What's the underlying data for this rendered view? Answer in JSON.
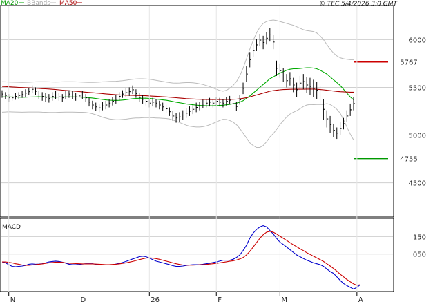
{
  "chart_data": [
    {
      "type": "line",
      "title": "© TEC 5/4/2026 3:0 GMT",
      "legend": [
        {
          "name": "MA20",
          "color": "#00aa00"
        },
        {
          "name": "BBands",
          "color": "#bbbbbb"
        },
        {
          "name": "MA50",
          "color": "#aa0000"
        }
      ],
      "y_ticks": [
        "6000",
        "5500",
        "5000",
        "4500"
      ],
      "y_tick_values": [
        6000,
        5500,
        5000,
        4500
      ],
      "ylim": [
        4150,
        6350
      ],
      "x_ticks": [
        {
          "label": "N",
          "index": 2
        },
        {
          "label": "D",
          "index": 23
        },
        {
          "label": "26",
          "index": 44
        },
        {
          "label": "F",
          "index": 64
        },
        {
          "label": "M",
          "index": 83
        },
        {
          "label": "A",
          "index": 106
        }
      ],
      "n_bars": 106,
      "levels": [
        {
          "label": "5767",
          "value": 5767,
          "color": "#cc0000"
        },
        {
          "label": "4755",
          "value": 4755,
          "color": "#009900"
        }
      ],
      "price_bars": [
        [
          5470,
          5390
        ],
        [
          5450,
          5380
        ],
        [
          5430,
          5350
        ],
        [
          5420,
          5360
        ],
        [
          5440,
          5370
        ],
        [
          5450,
          5380
        ],
        [
          5460,
          5390
        ],
        [
          5480,
          5400
        ],
        [
          5490,
          5420
        ],
        [
          5520,
          5440
        ],
        [
          5500,
          5420
        ],
        [
          5460,
          5380
        ],
        [
          5450,
          5360
        ],
        [
          5440,
          5350
        ],
        [
          5430,
          5340
        ],
        [
          5450,
          5360
        ],
        [
          5460,
          5380
        ],
        [
          5440,
          5360
        ],
        [
          5430,
          5350
        ],
        [
          5460,
          5380
        ],
        [
          5470,
          5390
        ],
        [
          5460,
          5380
        ],
        [
          5440,
          5360
        ],
        [
          5450,
          5370
        ],
        [
          5460,
          5380
        ],
        [
          5430,
          5350
        ],
        [
          5390,
          5300
        ],
        [
          5360,
          5270
        ],
        [
          5340,
          5250
        ],
        [
          5330,
          5240
        ],
        [
          5350,
          5260
        ],
        [
          5360,
          5270
        ],
        [
          5380,
          5290
        ],
        [
          5400,
          5310
        ],
        [
          5420,
          5330
        ],
        [
          5450,
          5360
        ],
        [
          5470,
          5390
        ],
        [
          5490,
          5400
        ],
        [
          5500,
          5410
        ],
        [
          5520,
          5430
        ],
        [
          5480,
          5390
        ],
        [
          5440,
          5350
        ],
        [
          5420,
          5330
        ],
        [
          5400,
          5310
        ],
        [
          5380,
          5290
        ],
        [
          5390,
          5300
        ],
        [
          5380,
          5290
        ],
        [
          5360,
          5270
        ],
        [
          5340,
          5250
        ],
        [
          5320,
          5230
        ],
        [
          5290,
          5200
        ],
        [
          5250,
          5150
        ],
        [
          5230,
          5130
        ],
        [
          5240,
          5140
        ],
        [
          5260,
          5160
        ],
        [
          5280,
          5180
        ],
        [
          5300,
          5200
        ],
        [
          5320,
          5220
        ],
        [
          5340,
          5240
        ],
        [
          5350,
          5260
        ],
        [
          5370,
          5280
        ],
        [
          5380,
          5290
        ],
        [
          5390,
          5300
        ],
        [
          5380,
          5290
        ],
        [
          5400,
          5310
        ],
        [
          5390,
          5300
        ],
        [
          5380,
          5290
        ],
        [
          5400,
          5310
        ],
        [
          5410,
          5320
        ],
        [
          5380,
          5280
        ],
        [
          5350,
          5250
        ],
        [
          5420,
          5320
        ],
        [
          5550,
          5430
        ],
        [
          5720,
          5560
        ],
        [
          5870,
          5710
        ],
        [
          5950,
          5820
        ],
        [
          6010,
          5880
        ],
        [
          6060,
          5930
        ],
        [
          6040,
          5900
        ],
        [
          6080,
          5950
        ],
        [
          6120,
          5980
        ],
        [
          6050,
          5900
        ],
        [
          5780,
          5620
        ],
        [
          5750,
          5600
        ],
        [
          5700,
          5560
        ],
        [
          5640,
          5500
        ],
        [
          5660,
          5520
        ],
        [
          5600,
          5450
        ],
        [
          5550,
          5400
        ],
        [
          5620,
          5470
        ],
        [
          5640,
          5480
        ],
        [
          5610,
          5440
        ],
        [
          5600,
          5420
        ],
        [
          5580,
          5400
        ],
        [
          5560,
          5380
        ],
        [
          5520,
          5320
        ],
        [
          5380,
          5160
        ],
        [
          5260,
          5080
        ],
        [
          5200,
          5020
        ],
        [
          5120,
          4980
        ],
        [
          5080,
          4960
        ],
        [
          5140,
          5000
        ],
        [
          5180,
          5060
        ],
        [
          5260,
          5140
        ],
        [
          5330,
          5200
        ],
        [
          5400,
          5260
        ]
      ],
      "series": [
        {
          "name": "MA20",
          "color": "#00aa00",
          "values": [
            5400,
            5400,
            5400,
            5399,
            5398,
            5397,
            5396,
            5397,
            5398,
            5399,
            5400,
            5401,
            5400,
            5399,
            5398,
            5397,
            5397,
            5398,
            5399,
            5400,
            5400,
            5400,
            5399,
            5398,
            5397,
            5395,
            5392,
            5388,
            5383,
            5378,
            5373,
            5369,
            5366,
            5364,
            5363,
            5364,
            5367,
            5371,
            5376,
            5381,
            5384,
            5385,
            5386,
            5386,
            5384,
            5381,
            5377,
            5373,
            5369,
            5365,
            5359,
            5352,
            5345,
            5339,
            5333,
            5327,
            5322,
            5318,
            5314,
            5311,
            5309,
            5308,
            5308,
            5308,
            5309,
            5311,
            5313,
            5317,
            5322,
            5328,
            5335,
            5345,
            5360,
            5385,
            5410,
            5440,
            5470,
            5500,
            5530,
            5560,
            5590,
            5610,
            5630,
            5650,
            5665,
            5680,
            5690,
            5695,
            5695,
            5698,
            5702,
            5705,
            5705,
            5702,
            5695,
            5680,
            5660,
            5640,
            5610,
            5580,
            5550,
            5520,
            5480,
            5440,
            5400,
            5370
          ]
        },
        {
          "name": "MA50",
          "color": "#aa0000",
          "values": [
            5510,
            5508,
            5506,
            5504,
            5502,
            5500,
            5498,
            5497,
            5495,
            5493,
            5491,
            5489,
            5487,
            5485,
            5483,
            5480,
            5477,
            5474,
            5471,
            5468,
            5465,
            5462,
            5459,
            5456,
            5453,
            5450,
            5447,
            5444,
            5441,
            5438,
            5435,
            5432,
            5429,
            5426,
            5423,
            5421,
            5419,
            5418,
            5417,
            5416,
            5415,
            5414,
            5413,
            5412,
            5410,
            5408,
            5406,
            5404,
            5402,
            5400,
            5397,
            5394,
            5391,
            5388,
            5385,
            5382,
            5380,
            5378,
            5376,
            5375,
            5374,
            5373,
            5372,
            5372,
            5372,
            5372,
            5372,
            5373,
            5374,
            5375,
            5377,
            5380,
            5385,
            5392,
            5400,
            5410,
            5420,
            5430,
            5440,
            5450,
            5460,
            5466,
            5470,
            5474,
            5477,
            5479,
            5480,
            5481,
            5481,
            5481,
            5481,
            5482,
            5482,
            5482,
            5480,
            5477,
            5474,
            5470,
            5466,
            5462,
            5458,
            5455,
            5453,
            5451,
            5450,
            5450
          ]
        },
        {
          "name": "BBands",
          "color": "#bbbbbb",
          "values": [
            5560,
            5558,
            5556,
            5555,
            5554,
            5553,
            5552,
            5553,
            5554,
            5556,
            5558,
            5560,
            5560,
            5559,
            5558,
            5557,
            5556,
            5557,
            5558,
            5559,
            5559,
            5559,
            5558,
            5557,
            5555,
            5553,
            5552,
            5552,
            5553,
            5555,
            5558,
            5560,
            5562,
            5563,
            5564,
            5566,
            5570,
            5575,
            5580,
            5585,
            5588,
            5590,
            5590,
            5588,
            5585,
            5580,
            5574,
            5568,
            5562,
            5556,
            5550,
            5546,
            5545,
            5546,
            5548,
            5550,
            5550,
            5548,
            5544,
            5538,
            5530,
            5520,
            5508,
            5494,
            5480,
            5468,
            5460,
            5470,
            5490,
            5520,
            5560,
            5620,
            5700,
            5800,
            5900,
            5990,
            6070,
            6130,
            6170,
            6190,
            6200,
            6205,
            6200,
            6190,
            6180,
            6170,
            6160,
            6150,
            6135,
            6120,
            6105,
            6095,
            6090,
            6085,
            6070,
            6040,
            6000,
            5950,
            5900,
            5860,
            5830,
            5810,
            5800,
            5795,
            5790,
            5790
          ]
        },
        {
          "name": "BBands",
          "color": "#bbbbbb",
          "values": [
            5240,
            5242,
            5244,
            5243,
            5242,
            5241,
            5240,
            5241,
            5242,
            5242,
            5242,
            5242,
            5240,
            5239,
            5238,
            5237,
            5238,
            5239,
            5240,
            5241,
            5241,
            5241,
            5240,
            5239,
            5239,
            5237,
            5232,
            5224,
            5213,
            5201,
            5188,
            5178,
            5170,
            5165,
            5162,
            5162,
            5164,
            5167,
            5172,
            5177,
            5180,
            5180,
            5182,
            5184,
            5183,
            5182,
            5180,
            5178,
            5176,
            5174,
            5168,
            5158,
            5145,
            5132,
            5118,
            5104,
            5094,
            5088,
            5084,
            5084,
            5088,
            5096,
            5108,
            5122,
            5138,
            5154,
            5166,
            5164,
            5154,
            5136,
            5110,
            5070,
            5020,
            4970,
            4920,
            4890,
            4870,
            4870,
            4890,
            4930,
            4980,
            5015,
            5060,
            5110,
            5150,
            5190,
            5220,
            5240,
            5255,
            5276,
            5299,
            5315,
            5320,
            5319,
            5320,
            5320,
            5320,
            5330,
            5320,
            5300,
            5270,
            5230,
            5160,
            5085,
            5010,
            4950
          ]
        }
      ]
    },
    {
      "type": "line",
      "title": "MACD",
      "y_ticks": [
        "150",
        "050"
      ],
      "y_tick_values": [
        150,
        50
      ],
      "ylim": [
        -160,
        250
      ],
      "series": [
        {
          "name": "MACD",
          "color": "#0000cc",
          "values": [
            5,
            0,
            -10,
            -20,
            -22,
            -20,
            -18,
            -15,
            -8,
            -6,
            -8,
            -7,
            -5,
            0,
            5,
            8,
            10,
            8,
            4,
            -2,
            -8,
            -10,
            -10,
            -9,
            -7,
            -5,
            -5,
            -5,
            -8,
            -10,
            -12,
            -12,
            -12,
            -10,
            -7,
            -3,
            2,
            8,
            15,
            22,
            28,
            35,
            38,
            35,
            27,
            18,
            10,
            5,
            0,
            -5,
            -10,
            -16,
            -20,
            -20,
            -18,
            -15,
            -12,
            -10,
            -10,
            -10,
            -8,
            -5,
            -2,
            2,
            5,
            10,
            15,
            15,
            15,
            20,
            30,
            45,
            70,
            100,
            140,
            170,
            190,
            205,
            212,
            205,
            185,
            165,
            140,
            118,
            105,
            90,
            75,
            60,
            45,
            35,
            25,
            15,
            8,
            0,
            -5,
            -10,
            -20,
            -35,
            -50,
            -60,
            -80,
            -100,
            -118,
            -130,
            -140,
            -150,
            -140,
            -125
          ]
        },
        {
          "name": "Signal",
          "color": "#cc0000",
          "values": [
            5,
            5,
            3,
            0,
            -5,
            -8,
            -12,
            -14,
            -14,
            -12,
            -10,
            -8,
            -6,
            -3,
            0,
            2,
            4,
            4,
            3,
            0,
            -2,
            -3,
            -4,
            -5,
            -6,
            -6,
            -6,
            -6,
            -7,
            -8,
            -9,
            -10,
            -10,
            -9,
            -8,
            -6,
            -3,
            0,
            4,
            8,
            13,
            18,
            23,
            27,
            28,
            27,
            24,
            20,
            15,
            10,
            5,
            0,
            -5,
            -9,
            -12,
            -13,
            -13,
            -13,
            -12,
            -11,
            -10,
            -9,
            -7,
            -5,
            -3,
            0,
            3,
            6,
            9,
            12,
            16,
            22,
            30,
            45,
            65,
            90,
            115,
            140,
            160,
            175,
            180,
            175,
            165,
            152,
            140,
            128,
            115,
            103,
            92,
            80,
            70,
            58,
            48,
            38,
            28,
            18,
            8,
            -5,
            -18,
            -32,
            -48,
            -65,
            -80,
            -95,
            -108,
            -120,
            -128,
            -125
          ]
        }
      ]
    }
  ]
}
